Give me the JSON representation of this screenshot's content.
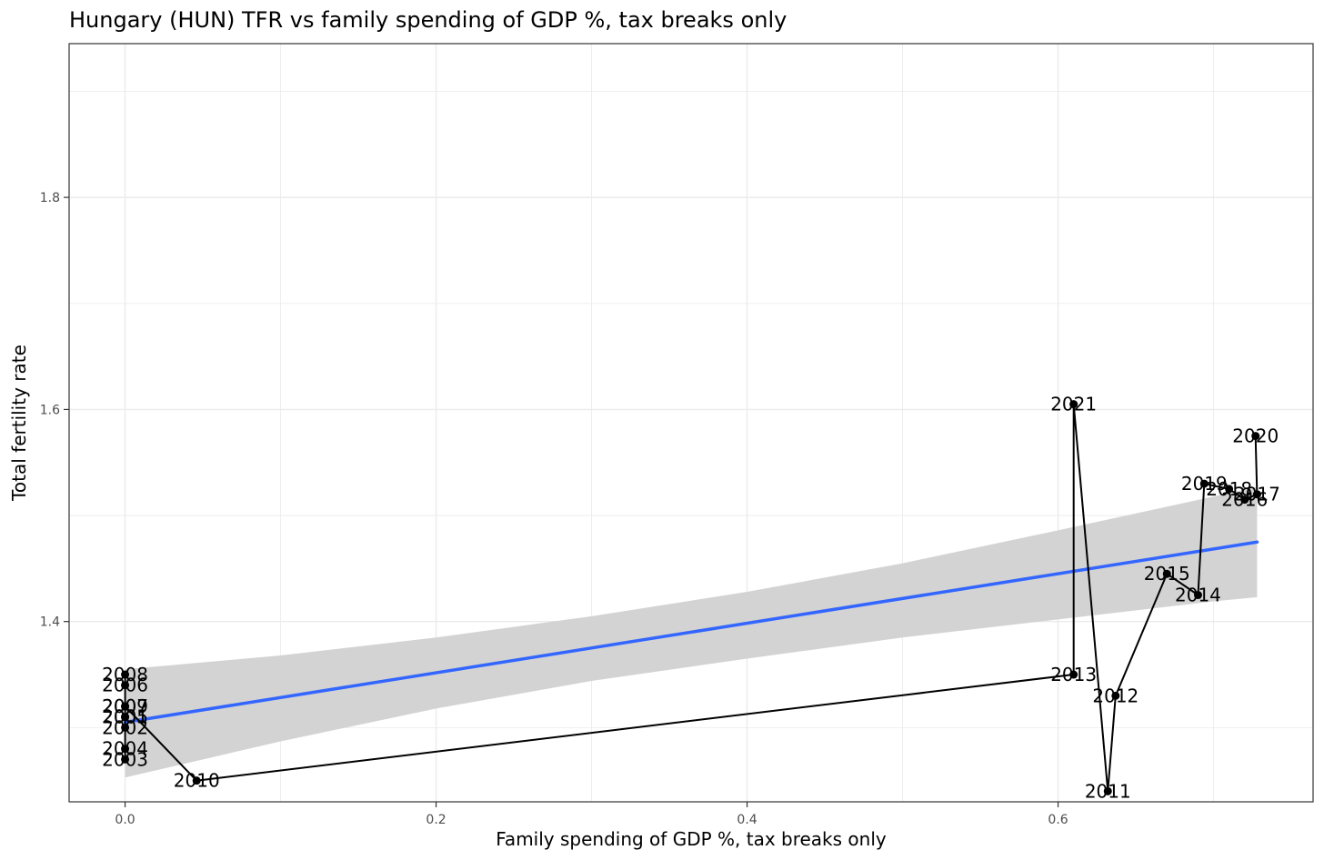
{
  "chart_data": {
    "type": "scatter",
    "title": "Hungary (HUN) TFR vs family spending of GDP %, tax breaks only",
    "xlabel": "Family spending of GDP %, tax breaks only",
    "ylabel": "Total fertility rate",
    "xlim": [
      -0.036,
      0.764
    ],
    "ylim": [
      1.23,
      1.945
    ],
    "x_ticks": [
      0.0,
      0.2,
      0.4,
      0.6
    ],
    "x_tick_labels": [
      "0.0",
      "0.2",
      "0.4",
      "0.6"
    ],
    "y_ticks": [
      1.4,
      1.6,
      1.8
    ],
    "y_tick_labels": [
      "1.4",
      "1.6",
      "1.8"
    ],
    "grid": true,
    "points": [
      {
        "label": "2001",
        "x": 0.0,
        "y": 1.31
      },
      {
        "label": "2002",
        "x": 0.0,
        "y": 1.3
      },
      {
        "label": "2003",
        "x": 0.0,
        "y": 1.27
      },
      {
        "label": "2004",
        "x": 0.0,
        "y": 1.28
      },
      {
        "label": "2005",
        "x": 0.0,
        "y": 1.31
      },
      {
        "label": "2006",
        "x": 0.0,
        "y": 1.34
      },
      {
        "label": "2007",
        "x": 0.0,
        "y": 1.32
      },
      {
        "label": "2008",
        "x": 0.0,
        "y": 1.35
      },
      {
        "label": "2009",
        "x": 0.0,
        "y": 1.32
      },
      {
        "label": "2010",
        "x": 0.046,
        "y": 1.25
      },
      {
        "label": "2011",
        "x": 0.632,
        "y": 1.24
      },
      {
        "label": "2012",
        "x": 0.637,
        "y": 1.33
      },
      {
        "label": "2013",
        "x": 0.61,
        "y": 1.35
      },
      {
        "label": "2014",
        "x": 0.69,
        "y": 1.425
      },
      {
        "label": "2015",
        "x": 0.67,
        "y": 1.445
      },
      {
        "label": "2016",
        "x": 0.72,
        "y": 1.515
      },
      {
        "label": "2017",
        "x": 0.728,
        "y": 1.52
      },
      {
        "label": "2018",
        "x": 0.71,
        "y": 1.525
      },
      {
        "label": "2019",
        "x": 0.694,
        "y": 1.53
      },
      {
        "label": "2020",
        "x": 0.727,
        "y": 1.575
      },
      {
        "label": "2021",
        "x": 0.61,
        "y": 1.605
      }
    ],
    "path_order": [
      "2001",
      "2002",
      "2003",
      "2004",
      "2005",
      "2006",
      "2007",
      "2008",
      "2009",
      "2010",
      "2013",
      "2021",
      "2011",
      "2012",
      "2015",
      "2014",
      "2019",
      "2018",
      "2016",
      "2017",
      "2020"
    ],
    "trend_line": {
      "x": [
        0.0,
        0.728
      ],
      "y": [
        1.305,
        1.475
      ],
      "color": "#3366ff"
    },
    "confidence_band": {
      "x": [
        0.0,
        0.1,
        0.2,
        0.3,
        0.4,
        0.5,
        0.6,
        0.7,
        0.728
      ],
      "upper": [
        1.355,
        1.368,
        1.385,
        1.405,
        1.428,
        1.455,
        1.486,
        1.518,
        1.527
      ],
      "lower": [
        1.253,
        1.287,
        1.318,
        1.344,
        1.365,
        1.385,
        1.402,
        1.419,
        1.423
      ],
      "color": "#d3d3d3"
    },
    "colors": {
      "points": "#000000",
      "path": "#000000",
      "grid": "#ebebeb",
      "panel_border": "#333333"
    }
  }
}
